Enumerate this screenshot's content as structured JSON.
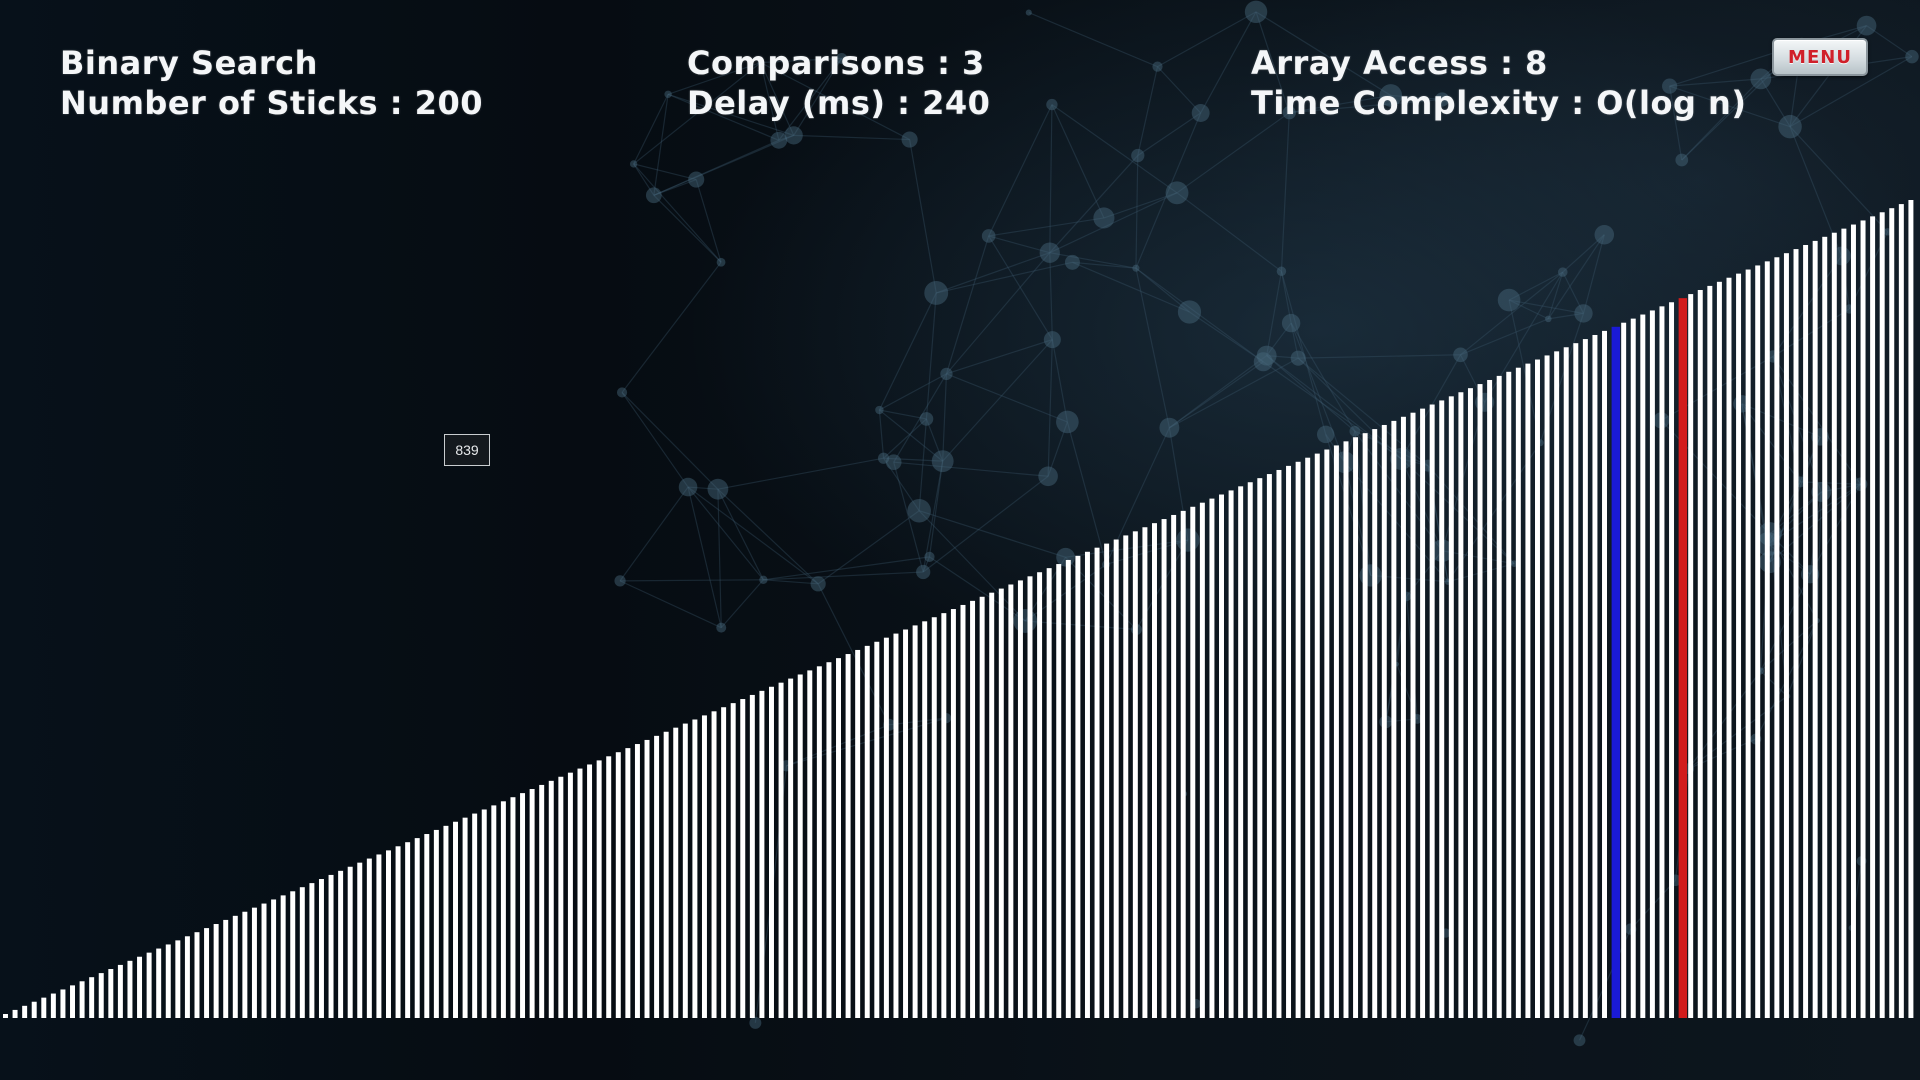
{
  "app": {
    "algorithm_name": "Binary Search",
    "num_sticks_text": "Number of Sticks : 200",
    "comparisons_text": "Comparisons : 3",
    "delay_text": "Delay (ms) : 240",
    "array_access_text": "Array Access : 8",
    "time_complexity_text": "Time Complexity : O(log n)"
  },
  "menu": {
    "label": "MENU",
    "text_color": "#d0202a"
  },
  "search": {
    "target_value": "839"
  },
  "sticks": {
    "count": 200,
    "stick_color": "#ffffff",
    "highlights": [
      {
        "index": 168,
        "color": "#1a1ad6",
        "role": "current-low"
      },
      {
        "index": 175,
        "color": "#d21c1c",
        "role": "current-mid"
      }
    ]
  },
  "icons": {
    "background": "network-graph-icon"
  }
}
